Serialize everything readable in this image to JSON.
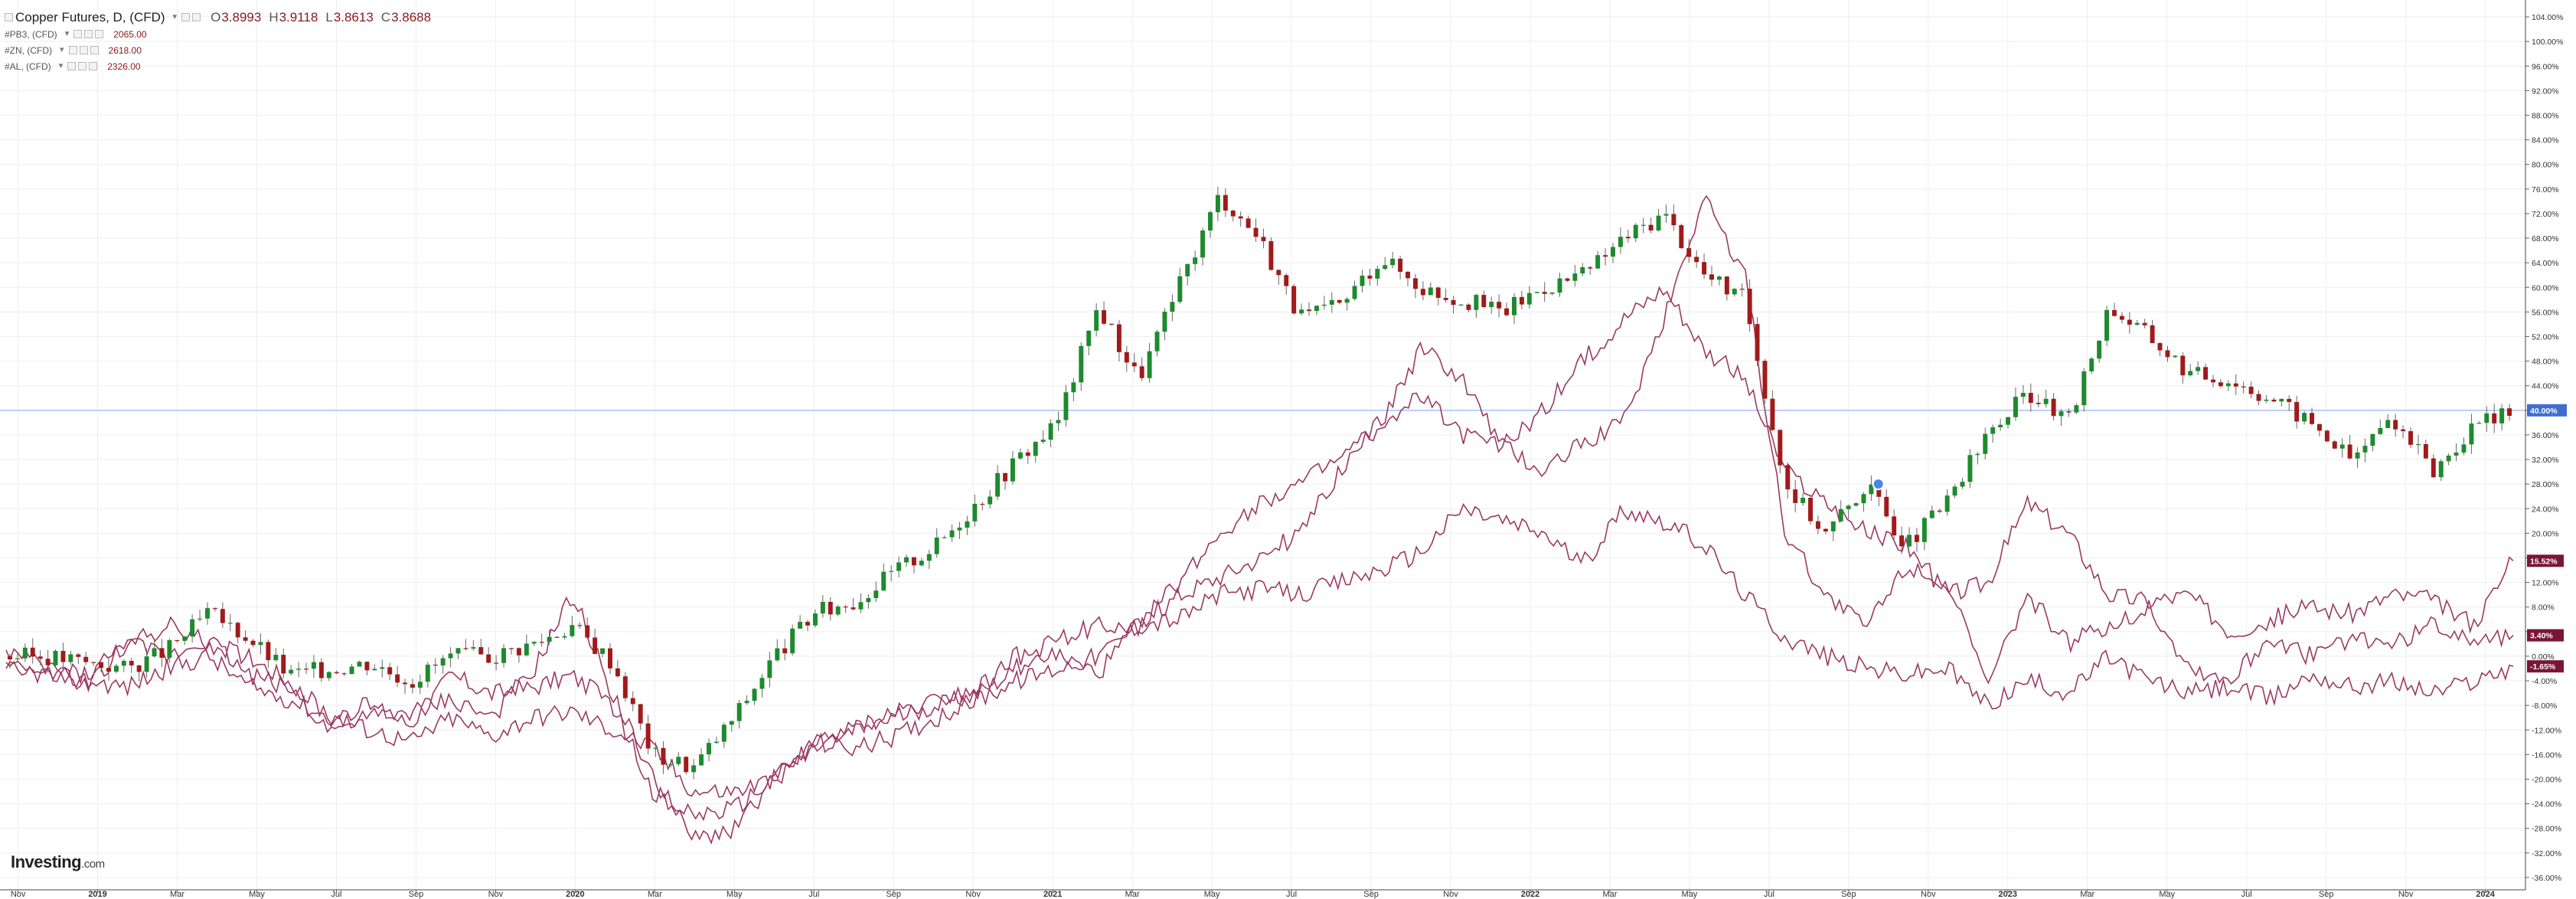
{
  "legend": {
    "main": {
      "symbol": "Copper Futures, D, (CFD)",
      "open": "3.8993",
      "high": "3.9118",
      "low": "3.8613",
      "close": "3.8688",
      "labels": {
        "o": "O",
        "h": "H",
        "l": "L",
        "c": "C"
      }
    },
    "overlays": [
      {
        "symbol": "#PB3, (CFD)",
        "value": "2065.00"
      },
      {
        "symbol": "#ZN, (CFD)",
        "value": "2618.00"
      },
      {
        "symbol": "#AL, (CFD)",
        "value": "2326.00"
      }
    ]
  },
  "logo": {
    "brand": "Investing",
    "domain": ".com"
  },
  "colors": {
    "candle_up": "#1d8a2e",
    "candle_down": "#a11a1a",
    "overlay_line": "#9b3a5f",
    "crosshair": "#a9c1ef",
    "marker": "#4a86e8",
    "grid": "#eeeeee"
  },
  "chart_data": {
    "type": "line",
    "title": "Copper Futures, D, (CFD)",
    "xlabel": "",
    "ylabel": "",
    "x_ticks": [
      "Nov",
      "2019",
      "Mar",
      "May",
      "Jul",
      "Sep",
      "Nov",
      "2020",
      "Mar",
      "May",
      "Jul",
      "Sep",
      "Nov",
      "2021",
      "Mar",
      "May",
      "Jul",
      "Sep",
      "Nov",
      "2022",
      "Mar",
      "May",
      "Jul",
      "Sep",
      "Nov",
      "2023",
      "Mar",
      "May",
      "Jul",
      "Sep",
      "Nov",
      "2024"
    ],
    "y_ticks": [
      "104.00%",
      "100.00%",
      "96.00%",
      "92.00%",
      "88.00%",
      "84.00%",
      "80.00%",
      "76.00%",
      "72.00%",
      "68.00%",
      "64.00%",
      "60.00%",
      "56.00%",
      "52.00%",
      "48.00%",
      "44.00%",
      "40.00%",
      "36.00%",
      "32.00%",
      "28.00%",
      "24.00%",
      "20.00%",
      "16.00%",
      "12.00%",
      "8.00%",
      "4.00%",
      "0.00%",
      "-4.00%",
      "-8.00%",
      "-12.00%",
      "-16.00%",
      "-20.00%",
      "-24.00%",
      "-28.00%",
      "-32.00%",
      "-36.00%"
    ],
    "ylim": [
      -38,
      105
    ],
    "x_range": [
      0,
      62
    ],
    "grid": true,
    "crosshair": {
      "y": 40,
      "label": "40.00%"
    },
    "last_value_labels": [
      {
        "value": 15.52,
        "text": "15.52%"
      },
      {
        "value": 3.4,
        "text": "3.40%"
      },
      {
        "value": -1.65,
        "text": "-1.65%"
      }
    ],
    "marker": {
      "x": 46.3,
      "y": 28
    },
    "series": [
      {
        "name": "Copper Futures, D, (CFD)",
        "style": "candles",
        "x": [
          0,
          1,
          2,
          3,
          4,
          5,
          6,
          7,
          8,
          9,
          10,
          11,
          12,
          13,
          14,
          15,
          16,
          17,
          18,
          19,
          20,
          21,
          22,
          23,
          24,
          25,
          26,
          27,
          28,
          29,
          30,
          31,
          32,
          33,
          34,
          35,
          36,
          37,
          38,
          39,
          40,
          41,
          42,
          43,
          44,
          45,
          46,
          47,
          48,
          49,
          50,
          51,
          52,
          53,
          54,
          55,
          56,
          57,
          58,
          59,
          60,
          61,
          62
        ],
        "values": [
          0,
          0,
          -1,
          -2,
          1,
          7,
          3,
          -3,
          -2,
          -1,
          -4,
          0,
          0,
          2,
          5,
          -1,
          -16,
          -18,
          -10,
          0,
          7,
          9,
          14,
          18,
          25,
          32,
          38,
          57,
          45,
          60,
          75,
          68,
          55,
          57,
          65,
          60,
          58,
          56,
          60,
          62,
          68,
          72,
          62,
          58,
          28,
          20,
          28,
          18,
          25,
          36,
          43,
          38,
          57,
          52,
          46,
          45,
          42,
          38,
          32,
          39,
          30,
          37,
          40
        ]
      },
      {
        "name": "#PB3, (CFD)",
        "style": "line",
        "x": [
          0,
          1,
          2,
          3,
          4,
          5,
          6,
          7,
          8,
          9,
          10,
          11,
          12,
          13,
          14,
          15,
          16,
          17,
          18,
          19,
          20,
          21,
          22,
          23,
          24,
          25,
          26,
          27,
          28,
          29,
          30,
          31,
          32,
          33,
          34,
          35,
          36,
          37,
          38,
          39,
          40,
          41,
          42,
          43,
          44,
          45,
          46,
          47,
          48,
          49,
          50,
          51,
          52,
          53,
          54,
          55,
          56,
          57,
          58,
          59,
          60,
          61,
          62
        ],
        "values": [
          -2,
          -3,
          -4,
          -5,
          -2,
          0,
          -5,
          -7,
          -10,
          -12,
          -14,
          -10,
          -13,
          -10,
          -9,
          -12,
          -15,
          -22,
          -22,
          -20,
          -14,
          -15,
          -13,
          -10,
          -7,
          -4,
          -2,
          0,
          5,
          6,
          10,
          11,
          10,
          12,
          14,
          17,
          24,
          22,
          20,
          15,
          24,
          22,
          18,
          10,
          3,
          0,
          -2,
          -3,
          -2,
          -8,
          -4,
          -6,
          0,
          -4,
          -6,
          -5,
          -7,
          -3,
          -5,
          -4,
          -6,
          -4,
          -1.65
        ]
      },
      {
        "name": "#ZN, (CFD)",
        "style": "line",
        "x": [
          0,
          1,
          2,
          3,
          4,
          5,
          6,
          7,
          8,
          9,
          10,
          11,
          12,
          13,
          14,
          15,
          16,
          17,
          18,
          19,
          20,
          21,
          22,
          23,
          24,
          25,
          26,
          27,
          28,
          29,
          30,
          31,
          32,
          33,
          34,
          35,
          36,
          37,
          38,
          39,
          40,
          41,
          42,
          43,
          44,
          45,
          46,
          47,
          48,
          49,
          50,
          51,
          52,
          53,
          54,
          55,
          56,
          57,
          58,
          59,
          60,
          61,
          62
        ],
        "values": [
          1,
          -2,
          -3,
          2,
          0,
          3,
          -3,
          -5,
          -12,
          -10,
          -9,
          -7,
          -10,
          -3,
          10,
          -6,
          -20,
          -30,
          -28,
          -20,
          -14,
          -12,
          -9,
          -7,
          -5,
          0,
          0,
          -3,
          5,
          12,
          20,
          25,
          28,
          32,
          38,
          50,
          45,
          34,
          30,
          35,
          38,
          55,
          75,
          62,
          20,
          10,
          5,
          15,
          12,
          -5,
          10,
          2,
          5,
          8,
          -2,
          -4,
          3,
          0,
          3,
          2,
          5,
          3,
          3.4
        ]
      },
      {
        "name": "#AL, (CFD)",
        "style": "line",
        "x": [
          0,
          1,
          2,
          3,
          4,
          5,
          6,
          7,
          8,
          9,
          10,
          11,
          12,
          13,
          14,
          15,
          16,
          17,
          18,
          19,
          20,
          21,
          22,
          23,
          24,
          25,
          26,
          27,
          28,
          29,
          30,
          31,
          32,
          33,
          34,
          35,
          36,
          37,
          38,
          39,
          40,
          41,
          42,
          43,
          44,
          45,
          46,
          47,
          48,
          49,
          50,
          51,
          52,
          53,
          54,
          55,
          56,
          57,
          58,
          59,
          60,
          61,
          62
        ],
        "values": [
          -1,
          -3,
          -5,
          2,
          5,
          2,
          0,
          -4,
          -10,
          -8,
          -11,
          -3,
          -6,
          -5,
          -3,
          -8,
          -22,
          -26,
          -25,
          -20,
          -15,
          -12,
          -10,
          -8,
          -6,
          -2,
          3,
          5,
          5,
          10,
          13,
          16,
          20,
          30,
          38,
          42,
          36,
          34,
          40,
          48,
          55,
          60,
          50,
          45,
          30,
          25,
          20,
          18,
          10,
          12,
          25,
          20,
          10,
          9,
          10,
          4,
          6,
          8,
          7,
          10,
          9,
          5,
          15.52
        ]
      }
    ]
  }
}
